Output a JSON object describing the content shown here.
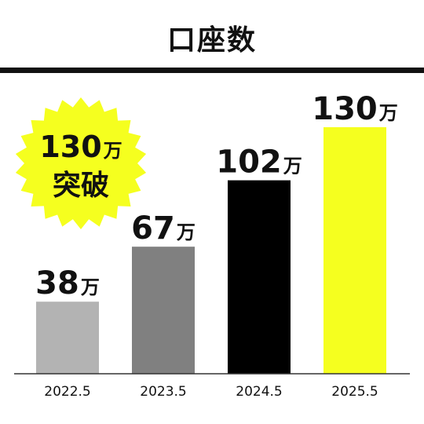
{
  "header": {
    "title": "口座数"
  },
  "badge": {
    "number": "130",
    "unit": "万",
    "text": "突破",
    "color": "#f5ff1f"
  },
  "chart_data": {
    "type": "bar",
    "title": "口座数",
    "categories": [
      "2022.5",
      "2023.5",
      "2024.5",
      "2025.5"
    ],
    "values": [
      38,
      67,
      102,
      130
    ],
    "unit": "万",
    "ylim": [
      0,
      130
    ],
    "colors": [
      "#b3b3b3",
      "#808080",
      "#000000",
      "#f5ff1f"
    ],
    "grid": false,
    "legend": "none"
  }
}
